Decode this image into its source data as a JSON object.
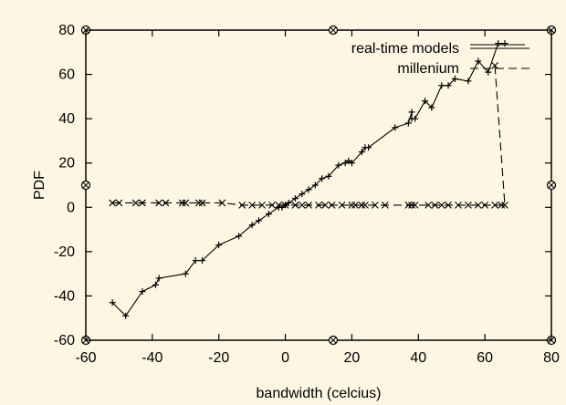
{
  "chart_data": {
    "type": "line",
    "xlabel": "bandwidth (celcius)",
    "ylabel": "PDF",
    "xlim": [
      -60,
      80
    ],
    "ylim": [
      -60,
      80
    ],
    "xticks": [
      "-60",
      "-40",
      "-20",
      "0",
      "20",
      "40",
      "60",
      "80"
    ],
    "yticks": [
      "-60",
      "-40",
      "-20",
      "0",
      "20",
      "40",
      "60",
      "80"
    ],
    "grid": false,
    "legend_position": "top-right",
    "series": [
      {
        "name": "real-time models",
        "marker": "plus",
        "line": "solid",
        "points": [
          [
            -52,
            -43
          ],
          [
            -48,
            -49
          ],
          [
            -43,
            -38
          ],
          [
            -39,
            -35
          ],
          [
            -38,
            -32
          ],
          [
            -30,
            -30
          ],
          [
            -27,
            -24
          ],
          [
            -25,
            -24
          ],
          [
            -20,
            -17
          ],
          [
            -14,
            -13
          ],
          [
            -10,
            -8
          ],
          [
            -8,
            -6
          ],
          [
            -5,
            -3
          ],
          [
            -2,
            0
          ],
          [
            -1,
            0
          ],
          [
            0,
            1
          ],
          [
            1,
            2
          ],
          [
            3,
            4
          ],
          [
            5,
            6
          ],
          [
            7,
            8
          ],
          [
            9,
            10
          ],
          [
            11,
            13
          ],
          [
            13,
            14
          ],
          [
            16,
            19
          ],
          [
            18,
            20
          ],
          [
            19,
            21
          ],
          [
            20,
            20
          ],
          [
            23,
            25
          ],
          [
            24,
            27
          ],
          [
            25,
            27
          ],
          [
            33,
            36
          ],
          [
            37,
            38
          ],
          [
            38,
            43
          ],
          [
            38,
            40
          ],
          [
            39,
            40
          ],
          [
            42,
            48
          ],
          [
            44,
            45
          ],
          [
            47,
            55
          ],
          [
            49,
            55
          ],
          [
            51,
            58
          ],
          [
            55,
            57
          ],
          [
            58,
            66
          ],
          [
            61,
            61
          ],
          [
            64,
            74
          ],
          [
            66,
            74
          ]
        ]
      },
      {
        "name": "millenium",
        "marker": "x",
        "line": "dashed",
        "points": [
          [
            -52,
            2
          ],
          [
            -50,
            2
          ],
          [
            -45,
            2
          ],
          [
            -43,
            2
          ],
          [
            -38,
            2
          ],
          [
            -36,
            2
          ],
          [
            -31,
            2
          ],
          [
            -30,
            2
          ],
          [
            -26,
            2
          ],
          [
            -25,
            2
          ],
          [
            -19,
            2
          ],
          [
            -13,
            1
          ],
          [
            -10,
            1
          ],
          [
            -7,
            1
          ],
          [
            -4,
            1
          ],
          [
            -2,
            1
          ],
          [
            0,
            1
          ],
          [
            3,
            1
          ],
          [
            5,
            1
          ],
          [
            7,
            1
          ],
          [
            10,
            1
          ],
          [
            12,
            1
          ],
          [
            14,
            1
          ],
          [
            17,
            1
          ],
          [
            20,
            1
          ],
          [
            21,
            1
          ],
          [
            23,
            1
          ],
          [
            24,
            1
          ],
          [
            27,
            1
          ],
          [
            30,
            1
          ],
          [
            37,
            1
          ],
          [
            38,
            1
          ],
          [
            39,
            1
          ],
          [
            43,
            1
          ],
          [
            45,
            1
          ],
          [
            47,
            1
          ],
          [
            49,
            1
          ],
          [
            52,
            1
          ],
          [
            55,
            1
          ],
          [
            58,
            1
          ],
          [
            60,
            1
          ],
          [
            63,
            1
          ],
          [
            65,
            1
          ],
          [
            66,
            1
          ],
          [
            63,
            64
          ]
        ]
      }
    ]
  }
}
